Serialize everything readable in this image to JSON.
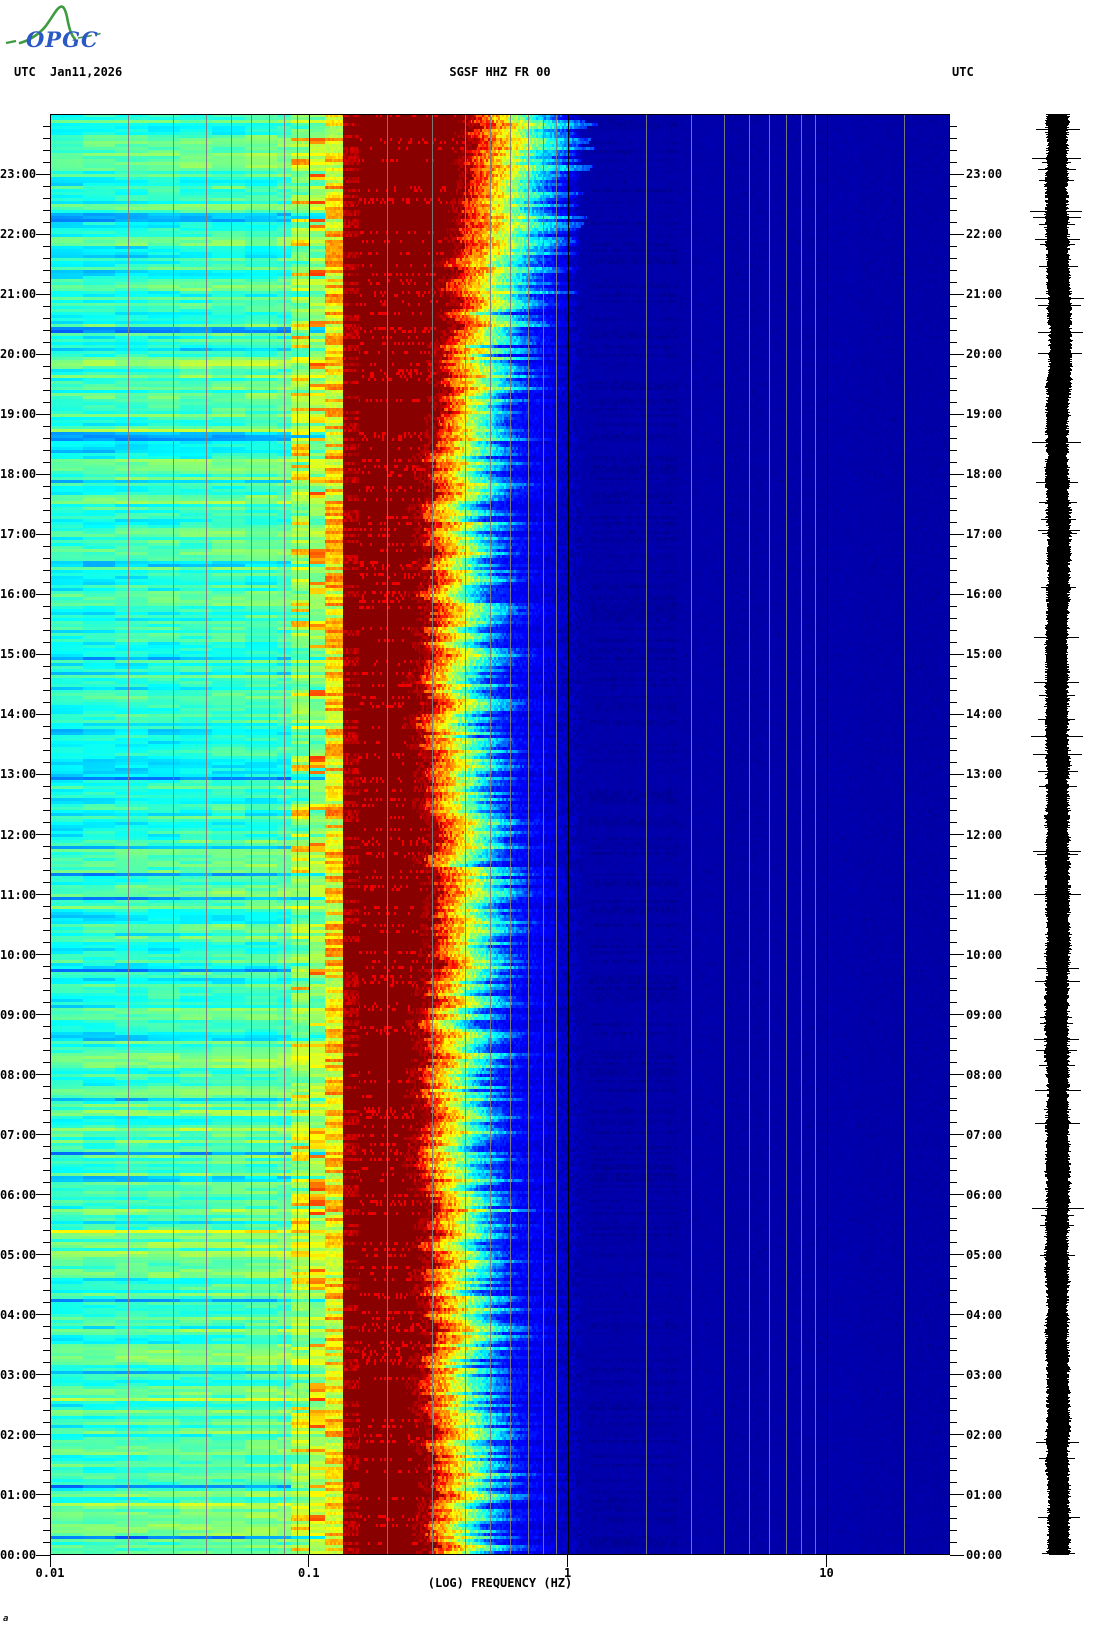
{
  "header": {
    "utc_label_left": "UTC",
    "date": "Jan11,2026",
    "station": "SGSF HHZ FR 00",
    "utc_label_right": "UTC"
  },
  "logo": {
    "text": "OPGC",
    "line_color": "#3e9b40",
    "text_color": "#2a59c5"
  },
  "axes": {
    "x_label": "(LOG) FREQUENCY (HZ)",
    "x_ticks": [
      {
        "hz": 0.01,
        "label": "0.01"
      },
      {
        "hz": 0.1,
        "label": "0.1"
      },
      {
        "hz": 1,
        "label": "1"
      },
      {
        "hz": 10,
        "label": "10"
      }
    ],
    "y_hour_labels": [
      "00:00",
      "01:00",
      "02:00",
      "03:00",
      "04:00",
      "05:00",
      "06:00",
      "07:00",
      "08:00",
      "09:00",
      "10:00",
      "11:00",
      "12:00",
      "13:00",
      "14:00",
      "15:00",
      "16:00",
      "17:00",
      "18:00",
      "19:00",
      "20:00",
      "21:00",
      "22:00",
      "23:00"
    ],
    "y_minor_intervals_per_hour": 5
  },
  "corner_mark": "a",
  "chart_data": {
    "type": "heatmap",
    "subtype": "seismic-spectrogram-with-seismogram-trace",
    "title": "SGSF HHZ FR 00 — 24 h spectrogram, Jan11,2026 UTC",
    "colormap": "jet",
    "render_seed": 20260111,
    "rows": 481,
    "x_axis": {
      "label": "(LOG) FREQUENCY (HZ)",
      "scale": "log",
      "min_hz": 0.01,
      "max_hz": 30,
      "minor_gridlines_hz": [
        0.02,
        0.03,
        0.04,
        0.05,
        0.06,
        0.07,
        0.08,
        0.09,
        0.2,
        0.3,
        0.4,
        0.5,
        0.6,
        0.7,
        0.8,
        0.9,
        2,
        3,
        4,
        5,
        6,
        7,
        8,
        9,
        20
      ],
      "decade_lines_hz": [
        0.1,
        1,
        10
      ]
    },
    "y_axis": {
      "label": "UTC time",
      "start": "00:00",
      "end": "24:00",
      "hours": 24,
      "minor_tick_minutes": 12
    },
    "bands": [
      {
        "range_hz": [
          0.01,
          0.085
        ],
        "level": "moderate",
        "appearance": "cyan/azure horizontal-striped background"
      },
      {
        "range_hz": [
          0.085,
          0.115
        ],
        "level": "elevated",
        "appearance": "green-yellow striped transition column"
      },
      {
        "range_hz": [
          0.115,
          0.14
        ],
        "level": "high",
        "appearance": "yellow-orange-red stripes"
      },
      {
        "range_hz": [
          0.14,
          0.3
        ],
        "level": "saturated",
        "appearance": "solid dark-red microseism band"
      },
      {
        "range_hz": [
          0.3,
          0.9
        ],
        "level": "decaying",
        "appearance": "jagged red-yellow-cyan-blue decay edge"
      },
      {
        "range_hz": [
          0.9,
          30
        ],
        "level": "low",
        "appearance": "uniform navy; darker mottling 1.2-2.6 Hz"
      }
    ],
    "low_band_level_by_hour": [
      0.42,
      0.42,
      0.42,
      0.42,
      0.42,
      0.44,
      0.44,
      0.44,
      0.42,
      0.4,
      0.4,
      0.41,
      0.39,
      0.38,
      0.38,
      0.4,
      0.41,
      0.4,
      0.42,
      0.43,
      0.42,
      0.39,
      0.41,
      0.42,
      0.41
    ],
    "red_band_end_hz_by_hour": [
      0.3,
      0.31,
      0.3,
      0.29,
      0.29,
      0.3,
      0.29,
      0.28,
      0.28,
      0.29,
      0.31,
      0.32,
      0.3,
      0.29,
      0.28,
      0.28,
      0.29,
      0.3,
      0.3,
      0.32,
      0.34,
      0.36,
      0.38,
      0.41,
      0.43
    ],
    "trace": {
      "present": true,
      "side": "right",
      "color": "#000000",
      "description": "24 h vertical seismogram drum trace"
    }
  }
}
